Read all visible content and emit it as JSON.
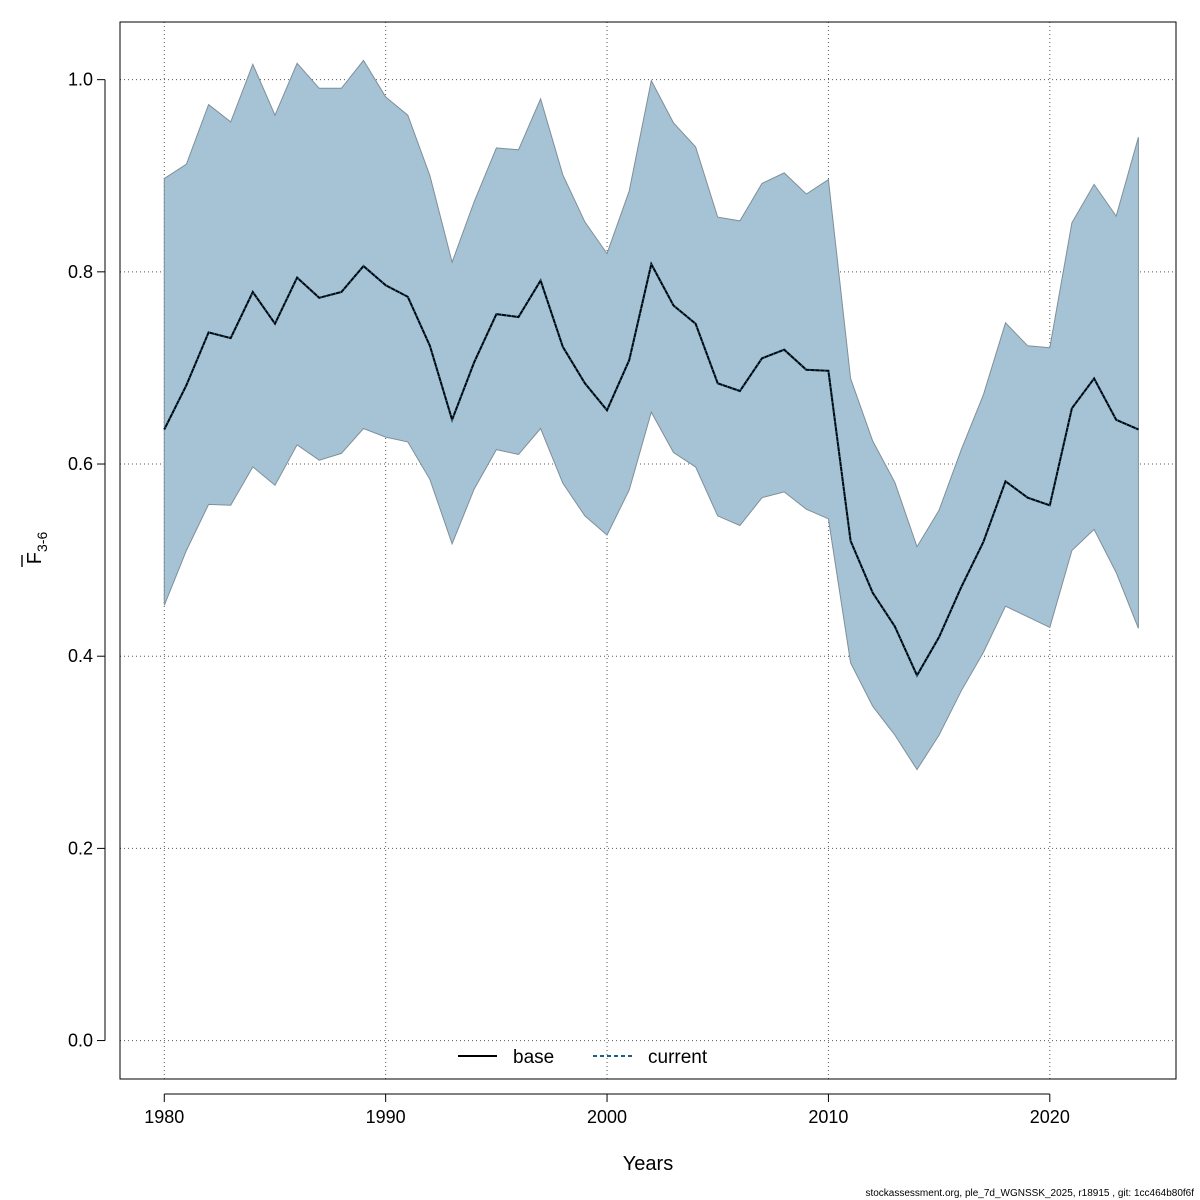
{
  "chart_data": {
    "type": "area",
    "xlabel": "Years",
    "ylabel_main": "F",
    "ylabel_sub": "3-6",
    "xlim": [
      1978,
      2025.7
    ],
    "ylim": [
      -0.04,
      1.06
    ],
    "x_ticks": [
      1980,
      1990,
      2000,
      2010,
      2020
    ],
    "x_tick_labels": [
      "1980",
      "1990",
      "2000",
      "2010",
      "2020"
    ],
    "y_ticks": [
      0.0,
      0.2,
      0.4,
      0.6,
      0.8,
      1.0
    ],
    "y_tick_labels": [
      "0.0",
      "0.2",
      "0.4",
      "0.6",
      "0.8",
      "1.0"
    ],
    "grid": true,
    "legend_position": "bottom-center",
    "colors": {
      "band_fill": "#a5c3d4",
      "band_edge": "#7f8f99",
      "base_line": "#000000",
      "current_line": "#1f5f86",
      "grid": "#555555"
    },
    "x": [
      1980,
      1981,
      1982,
      1983,
      1984,
      1985,
      1986,
      1987,
      1988,
      1989,
      1990,
      1991,
      1992,
      1993,
      1994,
      1995,
      1996,
      1997,
      1998,
      1999,
      2000,
      2001,
      2002,
      2003,
      2004,
      2005,
      2006,
      2007,
      2008,
      2009,
      2010,
      2011,
      2012,
      2013,
      2014,
      2015,
      2016,
      2017,
      2018,
      2019,
      2020,
      2021,
      2022,
      2023,
      2024
    ],
    "series": [
      {
        "name": "base",
        "style": "solid",
        "values": [
          0.636,
          0.682,
          0.737,
          0.731,
          0.779,
          0.746,
          0.794,
          0.773,
          0.779,
          0.806,
          0.786,
          0.774,
          0.723,
          0.646,
          0.706,
          0.756,
          0.753,
          0.791,
          0.722,
          0.684,
          0.656,
          0.708,
          0.808,
          0.765,
          0.746,
          0.684,
          0.676,
          0.71,
          0.719,
          0.698,
          0.697,
          0.52,
          0.466,
          0.431,
          0.38,
          0.42,
          0.472,
          0.519,
          0.582,
          0.565,
          0.557,
          0.658,
          0.689,
          0.646,
          0.636
        ]
      },
      {
        "name": "current",
        "style": "dashed",
        "values": [
          0.636,
          0.682,
          0.737,
          0.731,
          0.779,
          0.746,
          0.794,
          0.773,
          0.779,
          0.806,
          0.786,
          0.774,
          0.723,
          0.646,
          0.706,
          0.756,
          0.753,
          0.791,
          0.722,
          0.684,
          0.656,
          0.708,
          0.808,
          0.765,
          0.746,
          0.684,
          0.676,
          0.71,
          0.719,
          0.698,
          0.697,
          0.52,
          0.466,
          0.431,
          0.38,
          0.42,
          0.472,
          0.519,
          0.582,
          0.565,
          0.557,
          0.658,
          0.689,
          0.646,
          0.636
        ]
      }
    ],
    "band": {
      "upper": [
        0.897,
        0.912,
        0.974,
        0.956,
        1.016,
        0.963,
        1.017,
        0.991,
        0.991,
        1.02,
        0.982,
        0.963,
        0.9,
        0.81,
        0.873,
        0.929,
        0.927,
        0.98,
        0.901,
        0.852,
        0.819,
        0.884,
        0.999,
        0.955,
        0.93,
        0.857,
        0.853,
        0.892,
        0.903,
        0.881,
        0.896,
        0.689,
        0.624,
        0.581,
        0.514,
        0.552,
        0.615,
        0.672,
        0.747,
        0.723,
        0.721,
        0.851,
        0.891,
        0.858,
        0.94
      ],
      "lower": [
        0.453,
        0.51,
        0.558,
        0.557,
        0.597,
        0.578,
        0.62,
        0.604,
        0.611,
        0.637,
        0.628,
        0.623,
        0.584,
        0.517,
        0.574,
        0.615,
        0.61,
        0.637,
        0.58,
        0.546,
        0.526,
        0.573,
        0.654,
        0.612,
        0.597,
        0.546,
        0.536,
        0.565,
        0.571,
        0.553,
        0.543,
        0.393,
        0.348,
        0.318,
        0.282,
        0.318,
        0.364,
        0.404,
        0.452,
        0.441,
        0.43,
        0.51,
        0.532,
        0.487,
        0.429
      ]
    }
  },
  "footer": "stockassessment.org, ple_7d_WGNSSK_2025, r18915 , git: 1cc464b80f6f"
}
